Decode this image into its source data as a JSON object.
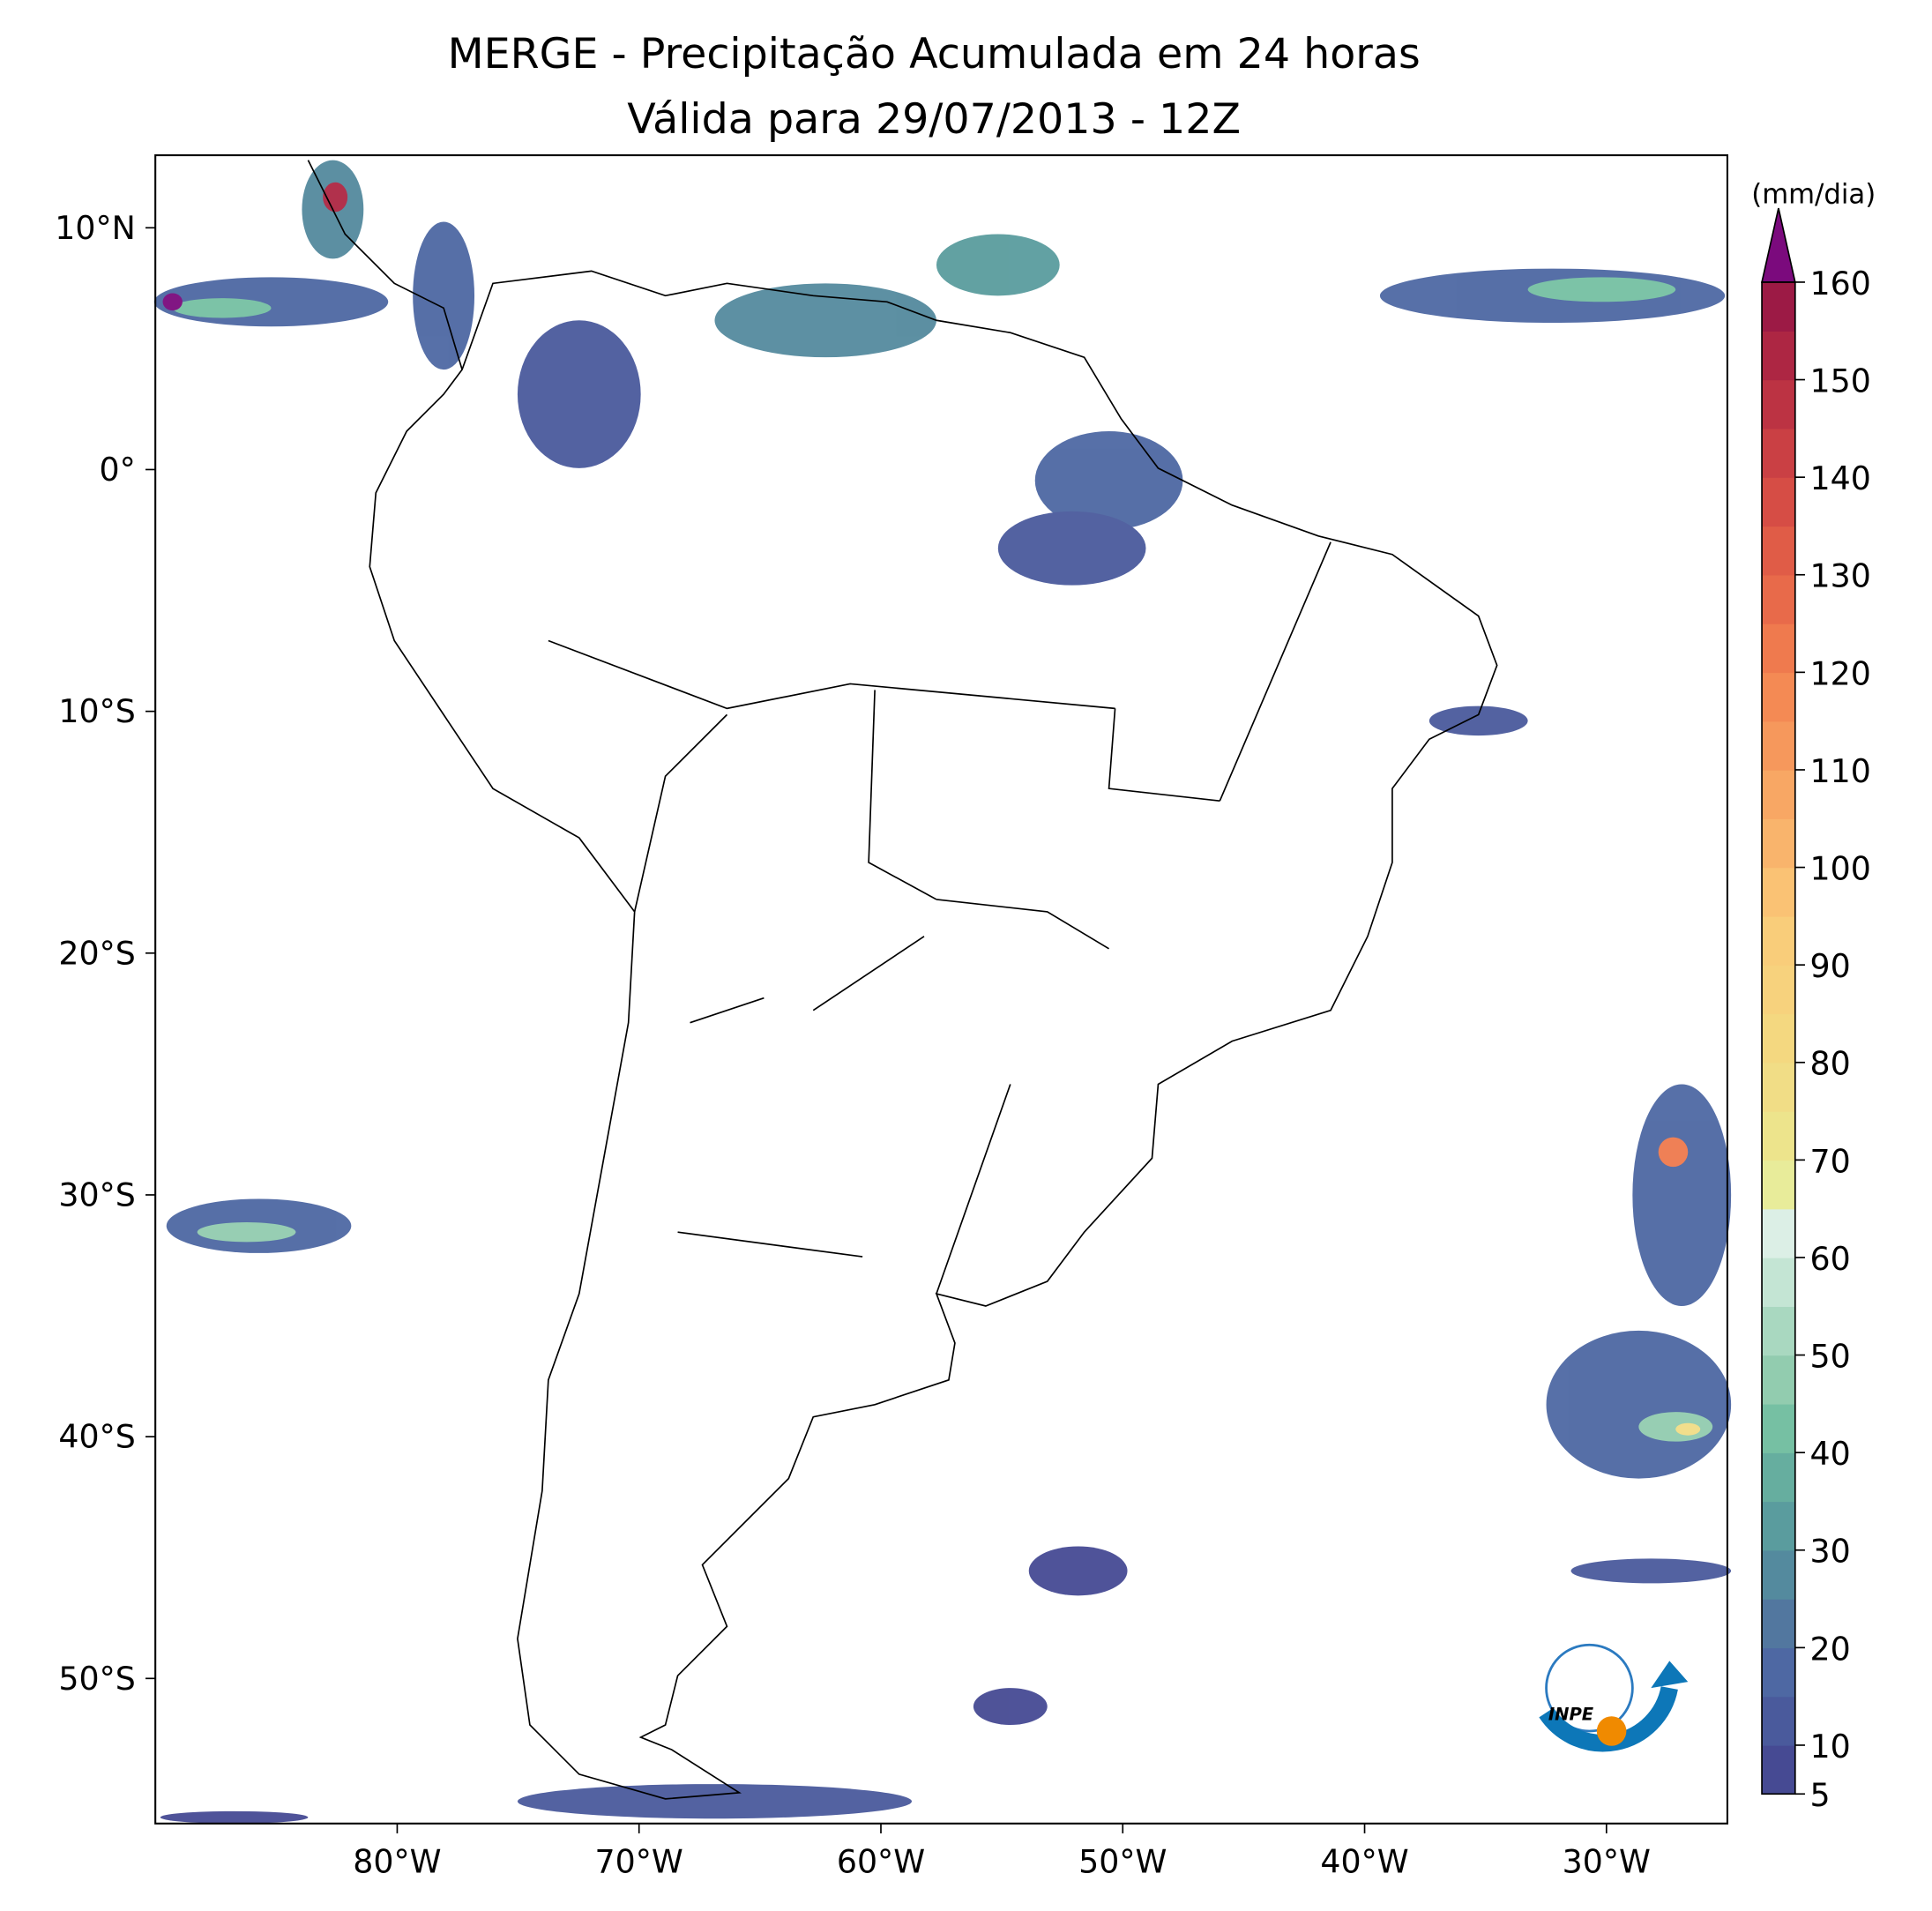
{
  "title": [
    "MERGE - Precipitação Acumulada em 24 horas",
    "Válida para 29/07/2013 - 12Z"
  ],
  "map": {
    "xlim": [
      -90,
      -25
    ],
    "ylim": [
      -56,
      13
    ],
    "xticks": [
      {
        "value": -80,
        "label": "80°W"
      },
      {
        "value": -70,
        "label": "70°W"
      },
      {
        "value": -60,
        "label": "60°W"
      },
      {
        "value": -50,
        "label": "50°W"
      },
      {
        "value": -40,
        "label": "40°W"
      },
      {
        "value": -30,
        "label": "30°W"
      }
    ],
    "yticks": [
      {
        "value": 10,
        "label": "10°N"
      },
      {
        "value": 0,
        "label": "0°"
      },
      {
        "value": -10,
        "label": "10°S"
      },
      {
        "value": -20,
        "label": "20°S"
      },
      {
        "value": -30,
        "label": "30°S"
      },
      {
        "value": -40,
        "label": "40°S"
      },
      {
        "value": -50,
        "label": "50°S"
      }
    ]
  },
  "colorbar": {
    "label": "(mm/dia)",
    "ticks": [
      5,
      10,
      20,
      30,
      40,
      50,
      60,
      70,
      80,
      90,
      100,
      110,
      120,
      130,
      140,
      150,
      160
    ],
    "colors": [
      "#464a93",
      "#4a5a9c",
      "#4e68a3",
      "#52779f",
      "#548a9e",
      "#5a9c9e",
      "#66ae9f",
      "#76c0a3",
      "#92ccaf",
      "#a9d8c0",
      "#c4e5d4",
      "#dcefe6",
      "#e8ec9a",
      "#ede48c",
      "#f1dd86",
      "#f4d880",
      "#f7d27d",
      "#f9cd7a",
      "#fac274",
      "#f9b46c",
      "#f8a764",
      "#f6985c",
      "#f48a54",
      "#ef7a4e",
      "#e86a4a",
      "#e05c47",
      "#d64d45",
      "#ca4044",
      "#bc3343",
      "#ad2643",
      "#9c1a45"
    ],
    "extend_color": "#7b0a7d"
  },
  "logo": {
    "text": "INPE"
  }
}
